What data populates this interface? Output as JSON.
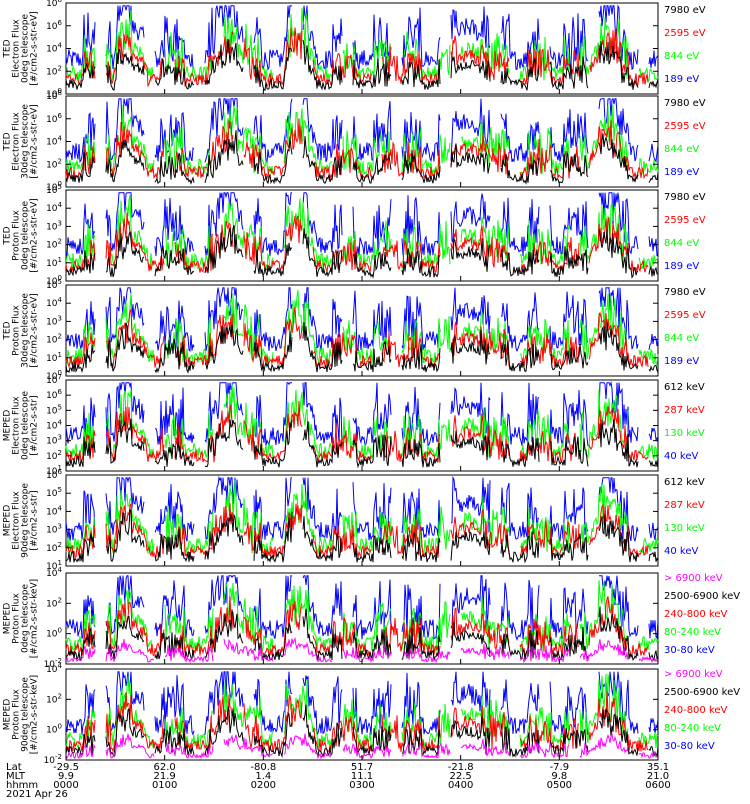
{
  "colors": {
    "blue": "#0000ff",
    "red": "#ff0000",
    "green": "#00ff00",
    "black": "#000000",
    "magenta": "#ff00ff"
  },
  "chart_data": [
    {
      "type": "line",
      "ylabel": [
        "TED",
        "Electron Flux",
        "0deg telescope",
        "[#/cm2-s-str-eV]"
      ],
      "y_ticks": [
        "10^0",
        "10^2",
        "10^4",
        "10^6",
        "10^8"
      ],
      "legend": [
        {
          "label": "7980 eV",
          "color": "#000000"
        },
        {
          "label": "2595 eV",
          "color": "#ff0000"
        },
        {
          "label": "844 eV",
          "color": "#00ff00"
        },
        {
          "label": "189 eV",
          "color": "#0000ff"
        }
      ]
    },
    {
      "type": "line",
      "ylabel": [
        "TED",
        "Electron Flux",
        "30deg telescope",
        "[#/cm2-s-str-eV]"
      ],
      "y_ticks": [
        "10^0",
        "10^2",
        "10^4",
        "10^6",
        "10^8"
      ],
      "legend": [
        {
          "label": "7980 eV",
          "color": "#000000"
        },
        {
          "label": "2595 eV",
          "color": "#ff0000"
        },
        {
          "label": "844 eV",
          "color": "#00ff00"
        },
        {
          "label": "189 eV",
          "color": "#0000ff"
        }
      ]
    },
    {
      "type": "line",
      "ylabel": [
        "TED",
        "Proton Flux",
        "0deg telescope",
        "[#/cm2-s-str-eV]"
      ],
      "y_ticks": [
        "10^0",
        "10^1",
        "10^2",
        "10^3",
        "10^4",
        "10^5"
      ],
      "legend": [
        {
          "label": "7980 eV",
          "color": "#000000"
        },
        {
          "label": "2595 eV",
          "color": "#ff0000"
        },
        {
          "label": "844 eV",
          "color": "#00ff00"
        },
        {
          "label": "189 eV",
          "color": "#0000ff"
        }
      ]
    },
    {
      "type": "line",
      "ylabel": [
        "TED",
        "Proton Flux",
        "30deg telescope",
        "[#/cm2-s-str-eV]"
      ],
      "y_ticks": [
        "10^0",
        "10^1",
        "10^2",
        "10^3",
        "10^4",
        "10^5"
      ],
      "legend": [
        {
          "label": "7980 eV",
          "color": "#000000"
        },
        {
          "label": "2595 eV",
          "color": "#ff0000"
        },
        {
          "label": "844 eV",
          "color": "#00ff00"
        },
        {
          "label": "189 eV",
          "color": "#0000ff"
        }
      ]
    },
    {
      "type": "line",
      "ylabel": [
        "MEPED",
        "Electron Flux",
        "0deg telescope",
        "[#/cm2-s-str]"
      ],
      "y_ticks": [
        "10^1",
        "10^2",
        "10^3",
        "10^4",
        "10^5",
        "10^6",
        "10^7"
      ],
      "legend": [
        {
          "label": "612 keV",
          "color": "#000000"
        },
        {
          "label": "287 keV",
          "color": "#ff0000"
        },
        {
          "label": "130 keV",
          "color": "#00ff00"
        },
        {
          "label": "40 keV",
          "color": "#0000ff"
        }
      ]
    },
    {
      "type": "line",
      "ylabel": [
        "MEPED",
        "Electron Flux",
        "90deg telescope",
        "[#/cm2-s-str]"
      ],
      "y_ticks": [
        "10^1",
        "10^2",
        "10^3",
        "10^4",
        "10^5",
        "10^6"
      ],
      "legend": [
        {
          "label": "612 keV",
          "color": "#000000"
        },
        {
          "label": "287 keV",
          "color": "#ff0000"
        },
        {
          "label": "130 keV",
          "color": "#00ff00"
        },
        {
          "label": "40 keV",
          "color": "#0000ff"
        }
      ]
    },
    {
      "type": "line",
      "ylabel": [
        "MEPED",
        "Proton Flux",
        "0deg telescope",
        "[#/cm2-s-str-keV]"
      ],
      "y_ticks": [
        "10^-2",
        "10^0",
        "10^2",
        "10^4"
      ],
      "legend": [
        {
          "label": "> 6900 keV",
          "color": "#ff00ff"
        },
        {
          "label": "2500-6900 keV",
          "color": "#000000"
        },
        {
          "label": "240-800 keV",
          "color": "#ff0000"
        },
        {
          "label": "80-240 keV",
          "color": "#00ff00"
        },
        {
          "label": "30-80 keV",
          "color": "#0000ff"
        }
      ]
    },
    {
      "type": "line",
      "ylabel": [
        "MEPED",
        "Proton Flux",
        "90deg telescope",
        "[#/cm2-s-str-keV]"
      ],
      "y_ticks": [
        "10^-2",
        "10^0",
        "10^2",
        "10^4"
      ],
      "legend": [
        {
          "label": "> 6900 keV",
          "color": "#ff00ff"
        },
        {
          "label": "2500-6900 keV",
          "color": "#000000"
        },
        {
          "label": "240-800 keV",
          "color": "#ff0000"
        },
        {
          "label": "80-240 keV",
          "color": "#00ff00"
        },
        {
          "label": "30-80 keV",
          "color": "#0000ff"
        }
      ]
    }
  ],
  "x_axis": {
    "row_labels": [
      "Lat",
      "MLT",
      "hhmm",
      "2021 Apr 26"
    ],
    "ticks": [
      {
        "lat": "-29.5",
        "mlt": "9.9",
        "hhmm": "0000"
      },
      {
        "lat": "62.0",
        "mlt": "21.9",
        "hhmm": "0100"
      },
      {
        "lat": "-80.8",
        "mlt": "1.4",
        "hhmm": "0200"
      },
      {
        "lat": "51.7",
        "mlt": "11.1",
        "hhmm": "0300"
      },
      {
        "lat": "-21.8",
        "mlt": "22.5",
        "hhmm": "0400"
      },
      {
        "lat": "-7.9",
        "mlt": "9.8",
        "hhmm": "0500"
      },
      {
        "lat": "35.1",
        "mlt": "21.0",
        "hhmm": "0600"
      }
    ]
  }
}
